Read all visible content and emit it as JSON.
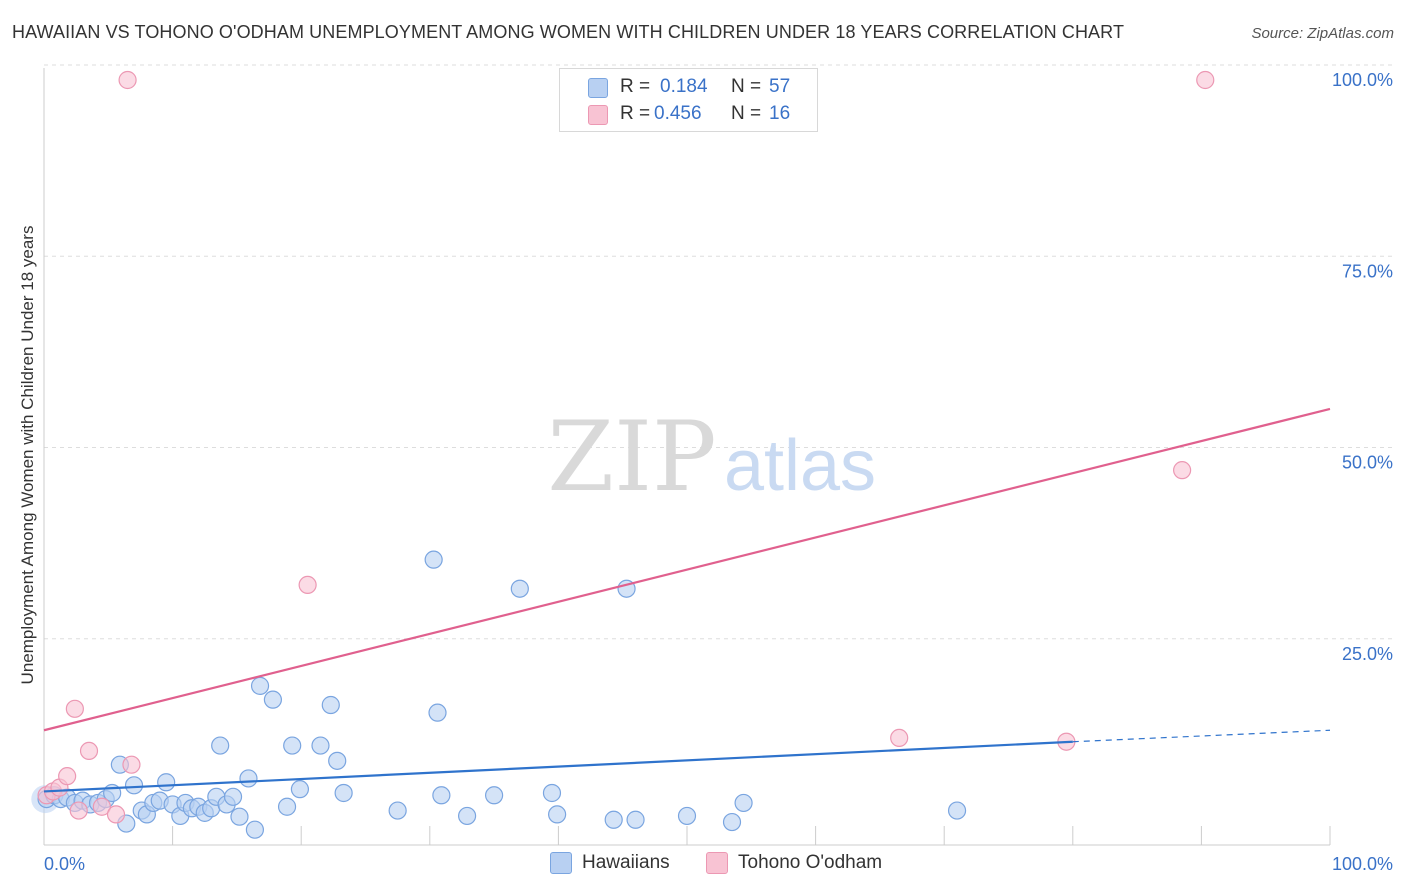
{
  "title": "HAWAIIAN VS TOHONO O'ODHAM UNEMPLOYMENT AMONG WOMEN WITH CHILDREN UNDER 18 YEARS CORRELATION CHART",
  "source": "Source: ZipAtlas.com",
  "watermark": {
    "zip": "ZIP",
    "atlas": "atlas"
  },
  "legend": {
    "rows": [
      {
        "r_label": "R =",
        "r_value": "0.184",
        "n_label": "N =",
        "n_value": "57"
      },
      {
        "r_label": "R =",
        "r_value": "0.456",
        "n_label": "N =",
        "n_value": "16"
      }
    ]
  },
  "bottom_legend": [
    "Hawaiians",
    "Tohono O'odham"
  ],
  "colors": {
    "blue_fill": "#b8d0f2",
    "blue_stroke": "#7aa5e0",
    "blue_line": "#2f73cc",
    "pink_fill": "#f8c3d3",
    "pink_stroke": "#ec98b3",
    "pink_line": "#e0608e",
    "grid": "#dddddd",
    "tick_text": "#3a72c8"
  },
  "chart_data": {
    "type": "scatter",
    "title": "HAWAIIAN VS TOHONO O'ODHAM UNEMPLOYMENT AMONG WOMEN WITH CHILDREN UNDER 18 YEARS CORRELATION CHART",
    "xlabel": "",
    "ylabel": "Unemployment Among Women with Children Under 18 years",
    "xlim": [
      0,
      100
    ],
    "ylim": [
      0,
      100
    ],
    "x_tick_labels": [
      "0.0%",
      "100.0%"
    ],
    "y_tick_labels": [
      "25.0%",
      "50.0%",
      "75.0%",
      "100.0%"
    ],
    "y_ticks": [
      25,
      50,
      75,
      100
    ],
    "series": [
      {
        "name": "Hawaiians",
        "color": "blue",
        "R": 0.184,
        "N": 57,
        "trend": {
          "x": [
            0,
            80
          ],
          "y": [
            7.0,
            13.5
          ],
          "dashed_to": [
            100,
            15.0
          ]
        },
        "points": [
          [
            0.2,
            6.0
          ],
          [
            0.8,
            6.5
          ],
          [
            1.3,
            6.0
          ],
          [
            1.8,
            6.2
          ],
          [
            2.4,
            5.5
          ],
          [
            3.0,
            5.8
          ],
          [
            3.6,
            5.3
          ],
          [
            4.2,
            5.5
          ],
          [
            4.8,
            6.0
          ],
          [
            5.3,
            6.8
          ],
          [
            5.9,
            10.5
          ],
          [
            6.4,
            2.8
          ],
          [
            7.0,
            7.8
          ],
          [
            7.6,
            4.5
          ],
          [
            8.0,
            4.0
          ],
          [
            8.5,
            5.5
          ],
          [
            9.0,
            5.8
          ],
          [
            9.5,
            8.2
          ],
          [
            10.0,
            5.3
          ],
          [
            10.6,
            3.8
          ],
          [
            11.0,
            5.5
          ],
          [
            11.5,
            4.8
          ],
          [
            12.0,
            5.0
          ],
          [
            12.5,
            4.2
          ],
          [
            13.0,
            4.8
          ],
          [
            13.4,
            6.3
          ],
          [
            13.7,
            13.0
          ],
          [
            14.2,
            5.3
          ],
          [
            14.7,
            6.3
          ],
          [
            15.2,
            3.7
          ],
          [
            15.9,
            8.7
          ],
          [
            16.4,
            2.0
          ],
          [
            16.8,
            20.8
          ],
          [
            17.8,
            19.0
          ],
          [
            18.9,
            5.0
          ],
          [
            19.3,
            13.0
          ],
          [
            19.9,
            7.3
          ],
          [
            21.5,
            13.0
          ],
          [
            22.3,
            18.3
          ],
          [
            22.8,
            11.0
          ],
          [
            23.3,
            6.8
          ],
          [
            27.5,
            4.5
          ],
          [
            30.3,
            37.3
          ],
          [
            30.6,
            17.3
          ],
          [
            30.9,
            6.5
          ],
          [
            32.9,
            3.8
          ],
          [
            35.0,
            6.5
          ],
          [
            37.0,
            33.5
          ],
          [
            39.5,
            6.8
          ],
          [
            39.9,
            4.0
          ],
          [
            44.3,
            3.3
          ],
          [
            45.3,
            33.5
          ],
          [
            46.0,
            3.3
          ],
          [
            50.0,
            3.8
          ],
          [
            53.5,
            3.0
          ],
          [
            54.4,
            5.5
          ],
          [
            71.0,
            4.5
          ]
        ]
      },
      {
        "name": "Tohono O'odham",
        "color": "pink",
        "R": 0.456,
        "N": 16,
        "trend": {
          "x": [
            0,
            100
          ],
          "y": [
            15.0,
            57.0
          ]
        },
        "points": [
          [
            0.2,
            6.5
          ],
          [
            0.7,
            7.0
          ],
          [
            1.2,
            7.5
          ],
          [
            1.8,
            9.0
          ],
          [
            2.4,
            17.8
          ],
          [
            2.7,
            4.5
          ],
          [
            3.5,
            12.3
          ],
          [
            4.5,
            5.0
          ],
          [
            5.6,
            4.0
          ],
          [
            6.5,
            100.0
          ],
          [
            6.8,
            10.5
          ],
          [
            20.5,
            34.0
          ],
          [
            66.5,
            14.0
          ],
          [
            79.5,
            13.5
          ],
          [
            88.5,
            49.0
          ],
          [
            90.3,
            100.0
          ]
        ]
      }
    ]
  }
}
